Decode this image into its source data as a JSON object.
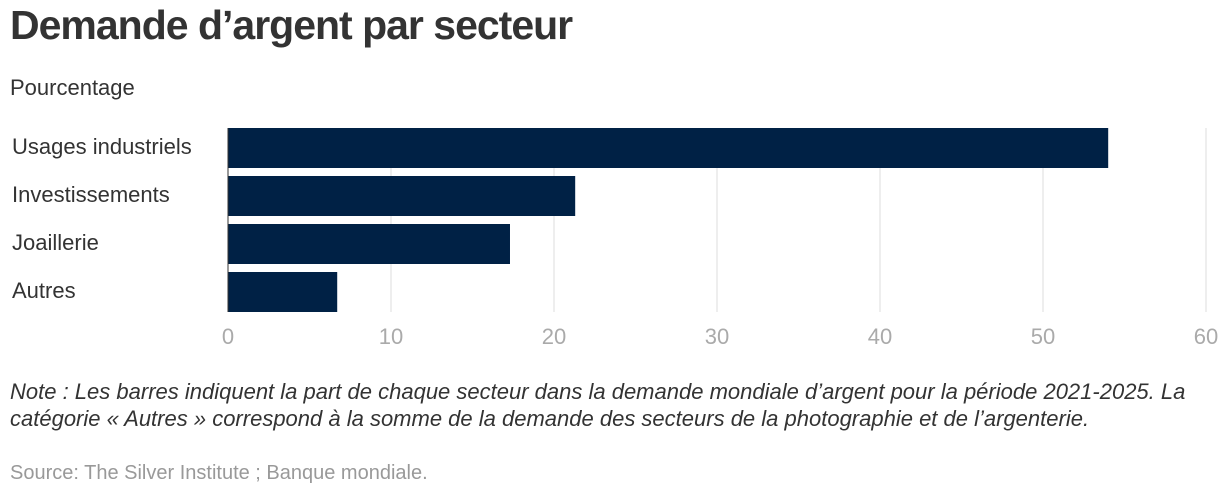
{
  "chart_data": {
    "type": "bar",
    "orientation": "horizontal",
    "title": "Demande d’argent par secteur",
    "subtitle": "Pourcentage",
    "categories": [
      "Usages industriels",
      "Investissements",
      "Joaillerie",
      "Autres"
    ],
    "values": [
      54,
      21.3,
      17.3,
      6.7
    ],
    "color": "#002145",
    "xlim": [
      0,
      60
    ],
    "xticks": [
      0,
      10,
      20,
      30,
      40,
      50,
      60
    ],
    "grid": true,
    "note": "Note : Les barres indiquent la part de chaque secteur dans la demande mondiale d’argent pour la période 2021-2025. La catégorie « Autres » correspond à la somme de la demande des secteurs de la photographie et de l’argenterie.",
    "source": "Source: The Silver Institute ; Banque mondiale."
  }
}
